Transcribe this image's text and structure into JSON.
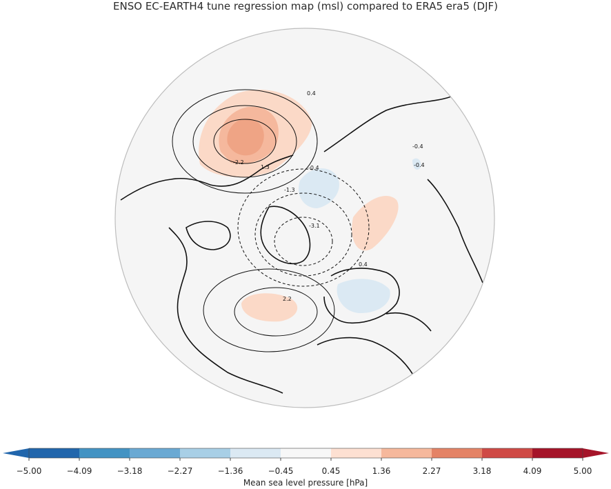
{
  "title": "ENSO EC-EARTH4 tune regression map (msl) compared to ERA5 era5 (DJF)",
  "colors": {
    "ocean": "#f5f5f5",
    "land_outline": "#111111",
    "border": "#bdbdbd",
    "contour": "#111111"
  },
  "chart_data": {
    "type": "heatmap",
    "projection": "north-polar-stereographic",
    "variable": "Mean sea level pressure [hPa]",
    "contour_labels": [
      "0.4",
      "-2.2",
      "1.3",
      "-1.3",
      "2.2",
      "-3.1",
      "-0.4",
      "0.4",
      "-0.4",
      "-0.4"
    ],
    "colorbar": {
      "label": "Mean sea level pressure [hPa]",
      "levels": [
        -5.0,
        -4.09,
        -3.18,
        -2.27,
        -1.36,
        -0.45,
        0.45,
        1.36,
        2.27,
        3.18,
        4.09,
        5.0
      ],
      "tick_labels": [
        "−5.00",
        "−4.09",
        "−3.18",
        "−2.27",
        "−1.36",
        "−0.45",
        "0.45",
        "1.36",
        "2.27",
        "3.18",
        "4.09",
        "5.00"
      ],
      "colors": [
        "#2166ac",
        "#4393c3",
        "#6aa9d3",
        "#a8cfe6",
        "#dbe9f3",
        "#f7f7f7",
        "#fde0d2",
        "#f6b89c",
        "#e48366",
        "#cf4a45",
        "#a51429"
      ],
      "extend": "both"
    }
  }
}
